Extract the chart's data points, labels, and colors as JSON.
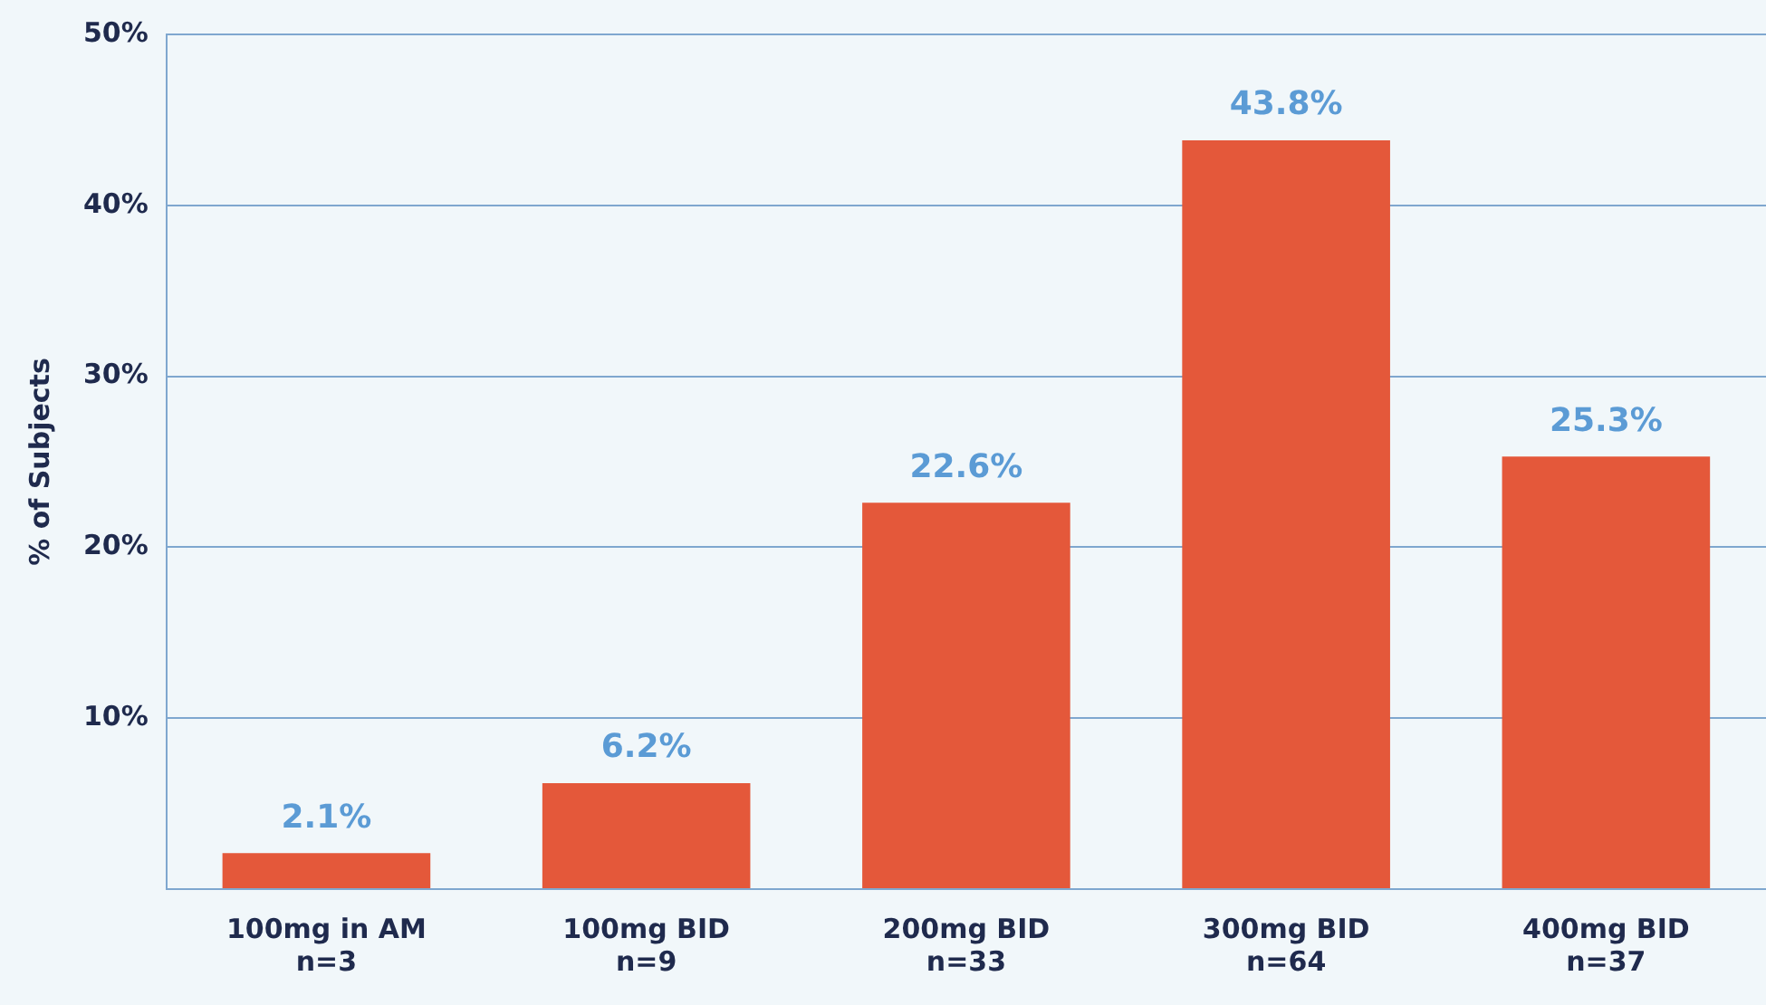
{
  "chart_data": {
    "type": "bar",
    "ylabel": "% of Subjects",
    "categories": [
      "100mg in AM\nn=3",
      "100mg BID\nn=9",
      "200mg BID\nn=33",
      "300mg BID\nn=64",
      "400mg BID\nn=37"
    ],
    "values": [
      2.1,
      6.2,
      22.6,
      43.8,
      25.3
    ],
    "value_labels": [
      "2.1%",
      "6.2%",
      "22.6%",
      "43.8%",
      "25.3%"
    ],
    "color": "#e4583a",
    "ylim": [
      0,
      50
    ],
    "yticks": [
      {
        "value": 0,
        "label": null
      },
      {
        "value": 10,
        "label": "10%"
      },
      {
        "value": 20,
        "label": "20%"
      },
      {
        "value": 30,
        "label": "30%"
      },
      {
        "value": 40,
        "label": "40%"
      },
      {
        "value": 50,
        "label": "50%"
      }
    ],
    "grid": "y",
    "legend": false
  }
}
